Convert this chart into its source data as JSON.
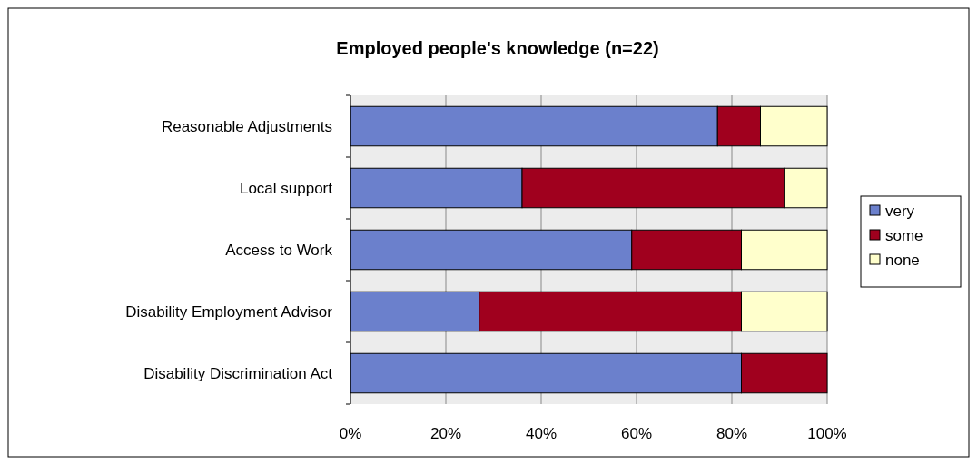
{
  "chart_data": {
    "type": "bar",
    "orientation": "horizontal",
    "stacked": true,
    "title": "Employed people's knowledge (n=22)",
    "categories": [
      "Reasonable Adjustments",
      "Local support",
      "Access to Work",
      "Disability Employment Advisor",
      "Disability Discrimination Act"
    ],
    "series": [
      {
        "name": "very",
        "color": "#6b80cc",
        "values": [
          77,
          36,
          59,
          27,
          82
        ]
      },
      {
        "name": "some",
        "color": "#a0001e",
        "values": [
          9,
          55,
          23,
          55,
          18
        ]
      },
      {
        "name": "none",
        "color": "#ffffcc",
        "values": [
          14,
          9,
          18,
          18,
          0
        ]
      }
    ],
    "xlim": [
      0,
      100
    ],
    "xticks": [
      {
        "value": 0,
        "label": "0%"
      },
      {
        "value": 20,
        "label": "20%"
      },
      {
        "value": 40,
        "label": "40%"
      },
      {
        "value": 60,
        "label": "60%"
      },
      {
        "value": 80,
        "label": "80%"
      },
      {
        "value": 100,
        "label": "100%"
      }
    ],
    "grid": "x",
    "legend": "right"
  }
}
